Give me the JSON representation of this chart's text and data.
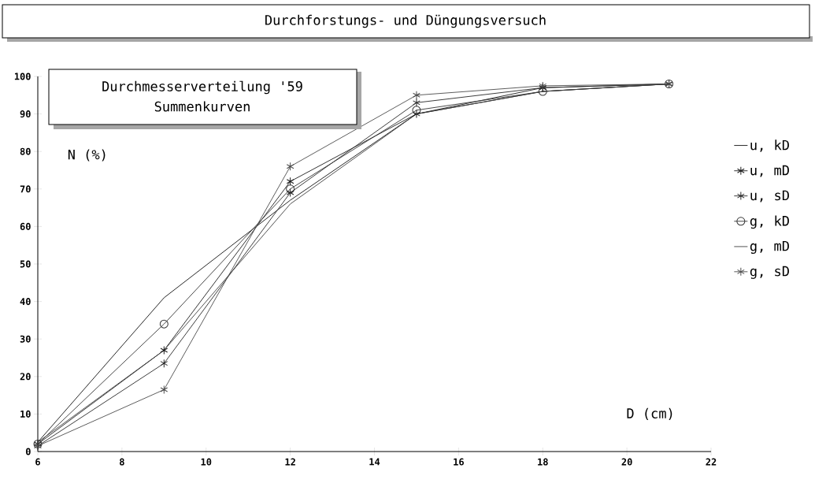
{
  "chart_data": {
    "type": "line",
    "title": "Durchforstungs- und Düngungsversuch",
    "annotations": [
      "Durchmesserverteilung '59",
      "Summenkurven"
    ],
    "xlabel": "D (cm)",
    "ylabel": "N (%)",
    "xlim": [
      6,
      22
    ],
    "xticks": [
      6,
      8,
      10,
      12,
      14,
      16,
      18,
      20,
      22
    ],
    "ylim": [
      0,
      100
    ],
    "yticks": [
      0,
      10,
      20,
      30,
      40,
      50,
      60,
      70,
      80,
      90,
      100
    ],
    "x": [
      6,
      9,
      12,
      15,
      18,
      21
    ],
    "legend": "right",
    "grid": false,
    "series": [
      {
        "name": "u, kD",
        "color": "#101010",
        "marker": "none",
        "values": [
          2.5,
          41,
          67,
          90,
          96,
          98
        ]
      },
      {
        "name": "u, mD",
        "color": "#1c1c1c",
        "marker": "cross",
        "values": [
          2,
          27,
          72,
          90,
          97,
          98
        ]
      },
      {
        "name": "u, sD",
        "color": "#282828",
        "marker": "cross",
        "values": [
          1.5,
          23.5,
          69,
          93,
          97,
          98
        ]
      },
      {
        "name": "g, kD",
        "color": "#343434",
        "marker": "circle",
        "values": [
          2,
          34,
          70,
          91,
          96,
          98
        ]
      },
      {
        "name": "g, mD",
        "color": "#404040",
        "marker": "none",
        "values": [
          2.5,
          27,
          66,
          90,
          96,
          98
        ]
      },
      {
        "name": "g, sD",
        "color": "#4c4c4c",
        "marker": "cross",
        "values": [
          1.5,
          16.5,
          76,
          95,
          97.5,
          98
        ]
      }
    ]
  }
}
